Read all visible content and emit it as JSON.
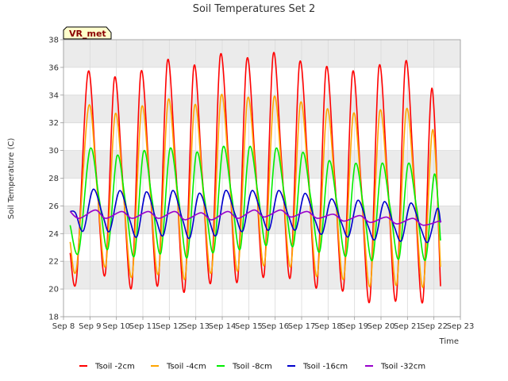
{
  "chart_data": {
    "type": "line",
    "title": "Soil Temperatures Set 2",
    "xlabel": "Time",
    "ylabel": "Soil Temperature (C)",
    "badge": "VR_met",
    "ylim": [
      18,
      38
    ],
    "yticks": [
      18,
      20,
      22,
      24,
      26,
      28,
      30,
      32,
      34,
      36,
      38
    ],
    "xlim": [
      8,
      23
    ],
    "xticks": [
      {
        "value": 8,
        "label": "Sep 8"
      },
      {
        "value": 9,
        "label": "Sep 9"
      },
      {
        "value": 10,
        "label": "Sep 10"
      },
      {
        "value": 11,
        "label": "Sep 11"
      },
      {
        "value": 12,
        "label": "Sep 12"
      },
      {
        "value": 13,
        "label": "Sep 13"
      },
      {
        "value": 14,
        "label": "Sep 14"
      },
      {
        "value": 15,
        "label": "Sep 15"
      },
      {
        "value": 16,
        "label": "Sep 16"
      },
      {
        "value": 17,
        "label": "Sep 17"
      },
      {
        "value": 18,
        "label": "Sep 18"
      },
      {
        "value": 19,
        "label": "Sep 19"
      },
      {
        "value": 20,
        "label": "Sep 20"
      },
      {
        "value": 21,
        "label": "Sep 21"
      },
      {
        "value": 22,
        "label": "Sep 22"
      },
      {
        "value": 23,
        "label": "Sep 23"
      }
    ],
    "grid": true,
    "legend_position": "bottom",
    "background_bands": true,
    "colors": {
      "band": "#ebebeb",
      "grid": "#d9d9d9",
      "axis": "#999999",
      "badge_fill": "#ffffcc",
      "badge_border": "#000000",
      "badge_text": "#8b0000"
    },
    "series": [
      {
        "name": "Tsoil -2cm",
        "color": "#ff0000",
        "points": [
          [
            8.25,
            22.6
          ],
          [
            8.5,
            20.9
          ],
          [
            8.92,
            35.6
          ],
          [
            9.25,
            28.0
          ],
          [
            9.58,
            21.1
          ],
          [
            9.92,
            35.2
          ],
          [
            10.25,
            27.5
          ],
          [
            10.58,
            20.2
          ],
          [
            10.92,
            35.6
          ],
          [
            11.25,
            28.0
          ],
          [
            11.58,
            20.4
          ],
          [
            11.92,
            36.4
          ],
          [
            12.25,
            28.5
          ],
          [
            12.58,
            19.9
          ],
          [
            12.92,
            36.0
          ],
          [
            13.25,
            28.0
          ],
          [
            13.58,
            20.6
          ],
          [
            13.92,
            36.8
          ],
          [
            14.25,
            29.0
          ],
          [
            14.58,
            20.6
          ],
          [
            14.92,
            36.5
          ],
          [
            15.25,
            29.0
          ],
          [
            15.58,
            21.0
          ],
          [
            15.92,
            36.9
          ],
          [
            16.25,
            29.0
          ],
          [
            16.58,
            20.9
          ],
          [
            16.92,
            36.3
          ],
          [
            17.25,
            28.5
          ],
          [
            17.58,
            20.2
          ],
          [
            17.92,
            35.9
          ],
          [
            18.25,
            28.0
          ],
          [
            18.58,
            20.0
          ],
          [
            18.92,
            35.6
          ],
          [
            19.25,
            27.5
          ],
          [
            19.58,
            19.2
          ],
          [
            19.92,
            36.0
          ],
          [
            20.25,
            27.8
          ],
          [
            20.58,
            19.3
          ],
          [
            20.92,
            36.3
          ],
          [
            21.25,
            28.0
          ],
          [
            21.58,
            19.1
          ],
          [
            21.92,
            34.5
          ],
          [
            22.25,
            20.2
          ]
        ]
      },
      {
        "name": "Tsoil -4cm",
        "color": "#ffa500",
        "points": [
          [
            8.25,
            23.4
          ],
          [
            8.5,
            21.6
          ],
          [
            8.95,
            33.2
          ],
          [
            9.28,
            27.0
          ],
          [
            9.6,
            21.7
          ],
          [
            9.95,
            32.6
          ],
          [
            10.28,
            26.5
          ],
          [
            10.6,
            21.0
          ],
          [
            10.95,
            33.1
          ],
          [
            11.28,
            27.0
          ],
          [
            11.6,
            21.2
          ],
          [
            11.95,
            33.6
          ],
          [
            12.28,
            27.2
          ],
          [
            12.6,
            20.8
          ],
          [
            12.95,
            33.2
          ],
          [
            13.28,
            27.0
          ],
          [
            13.6,
            21.3
          ],
          [
            13.95,
            33.9
          ],
          [
            14.28,
            27.8
          ],
          [
            14.6,
            21.4
          ],
          [
            14.95,
            33.7
          ],
          [
            15.28,
            27.8
          ],
          [
            15.6,
            21.8
          ],
          [
            15.95,
            33.8
          ],
          [
            16.28,
            27.8
          ],
          [
            16.6,
            21.7
          ],
          [
            16.95,
            33.4
          ],
          [
            17.28,
            27.3
          ],
          [
            17.6,
            21.0
          ],
          [
            17.95,
            32.9
          ],
          [
            18.28,
            26.8
          ],
          [
            18.6,
            20.8
          ],
          [
            18.95,
            32.6
          ],
          [
            19.28,
            26.5
          ],
          [
            19.6,
            20.3
          ],
          [
            19.95,
            32.8
          ],
          [
            20.28,
            26.6
          ],
          [
            20.6,
            20.4
          ],
          [
            20.95,
            32.9
          ],
          [
            21.28,
            26.8
          ],
          [
            21.6,
            20.2
          ],
          [
            21.95,
            31.5
          ],
          [
            22.25,
            21.6
          ]
        ]
      },
      {
        "name": "Tsoil -8cm",
        "color": "#00ee00",
        "points": [
          [
            8.25,
            24.6
          ],
          [
            8.58,
            22.7
          ],
          [
            9.0,
            30.1
          ],
          [
            9.35,
            26.5
          ],
          [
            9.68,
            22.9
          ],
          [
            10.02,
            29.6
          ],
          [
            10.35,
            26.2
          ],
          [
            10.68,
            22.4
          ],
          [
            11.02,
            29.9
          ],
          [
            11.35,
            26.4
          ],
          [
            11.68,
            22.6
          ],
          [
            12.02,
            30.1
          ],
          [
            12.35,
            26.5
          ],
          [
            12.68,
            22.3
          ],
          [
            13.02,
            29.8
          ],
          [
            13.35,
            26.3
          ],
          [
            13.68,
            22.7
          ],
          [
            14.02,
            30.2
          ],
          [
            14.35,
            26.8
          ],
          [
            14.68,
            22.9
          ],
          [
            15.02,
            30.2
          ],
          [
            15.35,
            26.9
          ],
          [
            15.68,
            23.2
          ],
          [
            16.02,
            30.1
          ],
          [
            16.35,
            26.8
          ],
          [
            16.68,
            23.1
          ],
          [
            17.02,
            29.8
          ],
          [
            17.35,
            26.5
          ],
          [
            17.68,
            22.7
          ],
          [
            18.02,
            29.2
          ],
          [
            18.35,
            26.0
          ],
          [
            18.68,
            22.4
          ],
          [
            19.02,
            29.0
          ],
          [
            19.35,
            25.8
          ],
          [
            19.68,
            22.1
          ],
          [
            20.02,
            29.0
          ],
          [
            20.35,
            25.8
          ],
          [
            20.68,
            22.2
          ],
          [
            21.02,
            29.0
          ],
          [
            21.35,
            25.8
          ],
          [
            21.68,
            22.1
          ],
          [
            22.02,
            28.3
          ],
          [
            22.25,
            23.5
          ]
        ]
      },
      {
        "name": "Tsoil -16cm",
        "color": "#0000cc",
        "points": [
          [
            8.25,
            25.6
          ],
          [
            8.45,
            25.5
          ],
          [
            8.75,
            24.2
          ],
          [
            9.12,
            27.2
          ],
          [
            9.5,
            25.2
          ],
          [
            9.75,
            24.2
          ],
          [
            10.12,
            27.1
          ],
          [
            10.5,
            25.0
          ],
          [
            10.78,
            23.8
          ],
          [
            11.12,
            27.0
          ],
          [
            11.5,
            25.0
          ],
          [
            11.78,
            23.9
          ],
          [
            12.12,
            27.1
          ],
          [
            12.5,
            25.0
          ],
          [
            12.78,
            23.7
          ],
          [
            13.12,
            26.9
          ],
          [
            13.5,
            25.0
          ],
          [
            13.78,
            23.9
          ],
          [
            14.12,
            27.1
          ],
          [
            14.5,
            25.3
          ],
          [
            14.78,
            24.2
          ],
          [
            15.12,
            27.1
          ],
          [
            15.5,
            25.3
          ],
          [
            15.78,
            24.3
          ],
          [
            16.12,
            27.1
          ],
          [
            16.5,
            25.3
          ],
          [
            16.78,
            24.3
          ],
          [
            17.12,
            26.9
          ],
          [
            17.5,
            25.0
          ],
          [
            17.78,
            24.0
          ],
          [
            18.12,
            26.5
          ],
          [
            18.5,
            24.8
          ],
          [
            18.78,
            23.8
          ],
          [
            19.12,
            26.4
          ],
          [
            19.5,
            24.6
          ],
          [
            19.78,
            23.6
          ],
          [
            20.12,
            26.3
          ],
          [
            20.5,
            24.5
          ],
          [
            20.78,
            23.5
          ],
          [
            21.12,
            26.2
          ],
          [
            21.5,
            24.4
          ],
          [
            21.78,
            23.4
          ],
          [
            22.12,
            25.8
          ],
          [
            22.25,
            24.8
          ]
        ]
      },
      {
        "name": "Tsoil -32cm",
        "color": "#9900cc",
        "points": [
          [
            8.25,
            25.6
          ],
          [
            8.6,
            25.1
          ],
          [
            9.2,
            25.7
          ],
          [
            9.6,
            25.1
          ],
          [
            10.2,
            25.6
          ],
          [
            10.6,
            25.1
          ],
          [
            11.2,
            25.6
          ],
          [
            11.6,
            25.1
          ],
          [
            12.2,
            25.6
          ],
          [
            12.6,
            25.0
          ],
          [
            13.2,
            25.5
          ],
          [
            13.6,
            25.0
          ],
          [
            14.2,
            25.6
          ],
          [
            14.6,
            25.1
          ],
          [
            15.2,
            25.7
          ],
          [
            15.6,
            25.2
          ],
          [
            16.2,
            25.7
          ],
          [
            16.6,
            25.2
          ],
          [
            17.2,
            25.6
          ],
          [
            17.6,
            25.1
          ],
          [
            18.2,
            25.4
          ],
          [
            18.6,
            24.9
          ],
          [
            19.2,
            25.3
          ],
          [
            19.6,
            24.8
          ],
          [
            20.2,
            25.2
          ],
          [
            20.6,
            24.7
          ],
          [
            21.2,
            25.1
          ],
          [
            21.6,
            24.6
          ],
          [
            22.2,
            24.9
          ],
          [
            22.25,
            24.8
          ]
        ]
      }
    ]
  }
}
